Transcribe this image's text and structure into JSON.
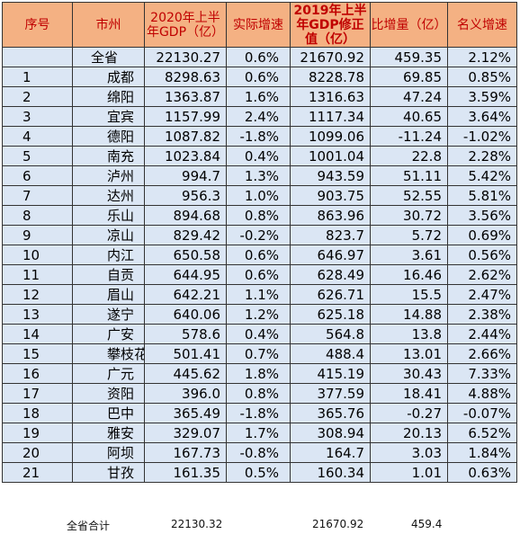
{
  "table": {
    "headers": {
      "index": "序号",
      "city": "市州",
      "gdp2020": "2020年上半年GDP（亿）",
      "real_growth": "实际增速",
      "gdp2019": "2019年上半年GDP修正值（亿）",
      "increase": "比增量（亿）",
      "nominal_growth": "名义增速"
    },
    "rows": [
      {
        "index": "",
        "city": "全省",
        "gdp2020": "22130.27",
        "real_growth": "0.6%",
        "gdp2019": "21670.92",
        "increase": "459.35",
        "nominal_growth": "2.12%"
      },
      {
        "index": "1",
        "city": "成都",
        "gdp2020": "8298.63",
        "real_growth": "0.6%",
        "gdp2019": "8228.78",
        "increase": "69.85",
        "nominal_growth": "0.85%"
      },
      {
        "index": "2",
        "city": "绵阳",
        "gdp2020": "1363.87",
        "real_growth": "1.6%",
        "gdp2019": "1316.63",
        "increase": "47.24",
        "nominal_growth": "3.59%"
      },
      {
        "index": "3",
        "city": "宜宾",
        "gdp2020": "1157.99",
        "real_growth": "2.4%",
        "gdp2019": "1117.34",
        "increase": "40.65",
        "nominal_growth": "3.64%"
      },
      {
        "index": "4",
        "city": "德阳",
        "gdp2020": "1087.82",
        "real_growth": "-1.8%",
        "gdp2019": "1099.06",
        "increase": "-11.24",
        "nominal_growth": "-1.02%"
      },
      {
        "index": "5",
        "city": "南充",
        "gdp2020": "1023.84",
        "real_growth": "0.4%",
        "gdp2019": "1001.04",
        "increase": "22.8",
        "nominal_growth": "2.28%"
      },
      {
        "index": "6",
        "city": "泸州",
        "gdp2020": "994.7",
        "real_growth": "1.3%",
        "gdp2019": "943.59",
        "increase": "51.11",
        "nominal_growth": "5.42%"
      },
      {
        "index": "7",
        "city": "达州",
        "gdp2020": "956.3",
        "real_growth": "1.0%",
        "gdp2019": "903.75",
        "increase": "52.55",
        "nominal_growth": "5.81%"
      },
      {
        "index": "8",
        "city": "乐山",
        "gdp2020": "894.68",
        "real_growth": "0.8%",
        "gdp2019": "863.96",
        "increase": "30.72",
        "nominal_growth": "3.56%"
      },
      {
        "index": "9",
        "city": "凉山",
        "gdp2020": "829.42",
        "real_growth": "-0.2%",
        "gdp2019": "823.7",
        "increase": "5.72",
        "nominal_growth": "0.69%"
      },
      {
        "index": "10",
        "city": "内江",
        "gdp2020": "650.58",
        "real_growth": "0.6%",
        "gdp2019": "646.97",
        "increase": "3.61",
        "nominal_growth": "0.56%"
      },
      {
        "index": "11",
        "city": "自贡",
        "gdp2020": "644.95",
        "real_growth": "0.6%",
        "gdp2019": "628.49",
        "increase": "16.46",
        "nominal_growth": "2.62%"
      },
      {
        "index": "12",
        "city": "眉山",
        "gdp2020": "642.21",
        "real_growth": "1.1%",
        "gdp2019": "626.71",
        "increase": "15.5",
        "nominal_growth": "2.47%"
      },
      {
        "index": "13",
        "city": "遂宁",
        "gdp2020": "640.06",
        "real_growth": "1.2%",
        "gdp2019": "625.18",
        "increase": "14.88",
        "nominal_growth": "2.38%"
      },
      {
        "index": "14",
        "city": "广安",
        "gdp2020": "578.6",
        "real_growth": "0.4%",
        "gdp2019": "564.8",
        "increase": "13.8",
        "nominal_growth": "2.44%"
      },
      {
        "index": "15",
        "city": "攀枝花",
        "gdp2020": "501.41",
        "real_growth": "0.7%",
        "gdp2019": "488.4",
        "increase": "13.01",
        "nominal_growth": "2.66%"
      },
      {
        "index": "16",
        "city": "广元",
        "gdp2020": "445.62",
        "real_growth": "1.8%",
        "gdp2019": "415.19",
        "increase": "30.43",
        "nominal_growth": "7.33%"
      },
      {
        "index": "17",
        "city": "资阳",
        "gdp2020": "396.0",
        "real_growth": "0.8%",
        "gdp2019": "377.59",
        "increase": "18.41",
        "nominal_growth": "4.88%"
      },
      {
        "index": "18",
        "city": "巴中",
        "gdp2020": "365.49",
        "real_growth": "-1.8%",
        "gdp2019": "365.76",
        "increase": "-0.27",
        "nominal_growth": "-0.07%"
      },
      {
        "index": "19",
        "city": "雅安",
        "gdp2020": "329.07",
        "real_growth": "1.7%",
        "gdp2019": "308.94",
        "increase": "20.13",
        "nominal_growth": "6.52%"
      },
      {
        "index": "20",
        "city": "阿坝",
        "gdp2020": "167.73",
        "real_growth": "-0.8%",
        "gdp2019": "164.7",
        "increase": "3.03",
        "nominal_growth": "1.84%"
      },
      {
        "index": "21",
        "city": "甘孜",
        "gdp2020": "161.35",
        "real_growth": "0.5%",
        "gdp2019": "160.34",
        "increase": "1.01",
        "nominal_growth": "0.63%"
      }
    ]
  },
  "footer": {
    "label": "全省合计",
    "gdp2020_total": "22130.32",
    "gdp2019_total": "21670.92",
    "increase_total": "459.4"
  }
}
